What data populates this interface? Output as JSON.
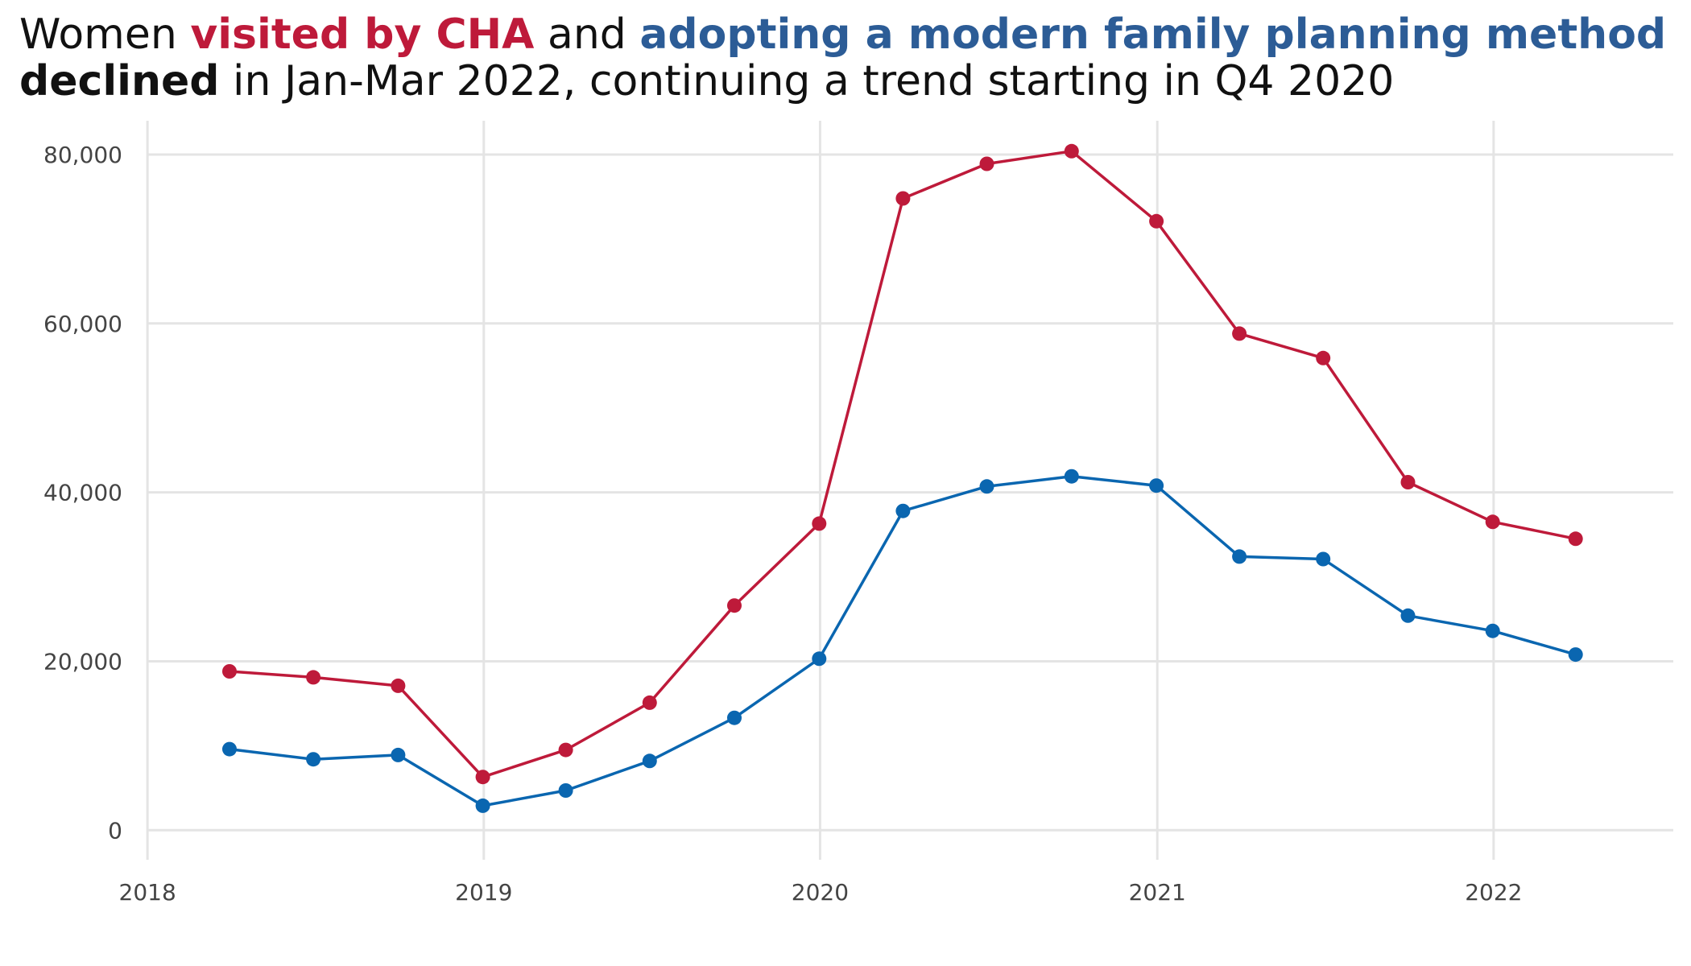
{
  "title": {
    "line1": [
      {
        "text": "Women ",
        "style": "normal"
      },
      {
        "text": "visited by CHA",
        "style": "red"
      },
      {
        "text": " and ",
        "style": "normal"
      },
      {
        "text": "adopting a modern family planning method",
        "style": "blue"
      }
    ],
    "line2": [
      {
        "text": "declined",
        "style": "bold"
      },
      {
        "text": " in Jan-Mar 2022, continuing a trend starting in Q4 2020",
        "style": "normal"
      }
    ]
  },
  "colors": {
    "visited": "#BE1A3A",
    "adopting": "#0A66B0",
    "grid": "#E4E4E4",
    "tick_text": "#444444",
    "title_text": "#111111"
  },
  "chart_data": {
    "type": "line",
    "title": "Women visited by CHA and adopting a modern family planning method declined in Jan-Mar 2022, continuing a trend starting in Q4 2020",
    "xlabel": "",
    "ylabel": "",
    "x": [
      "2018-03-31",
      "2018-06-30",
      "2018-09-30",
      "2018-12-31",
      "2019-03-31",
      "2019-06-30",
      "2019-09-30",
      "2019-12-31",
      "2020-03-31",
      "2020-06-30",
      "2020-09-30",
      "2020-12-31",
      "2021-03-31",
      "2021-06-30",
      "2021-09-30",
      "2021-12-31",
      "2022-03-31"
    ],
    "series": [
      {
        "key": "visited",
        "values": [
          18800,
          18100,
          17100,
          6300,
          9500,
          15100,
          26600,
          36300,
          74800,
          78900,
          80400,
          72100,
          58800,
          55900,
          41200,
          36500,
          34500
        ]
      },
      {
        "key": "adopting",
        "values": [
          9600,
          8400,
          8900,
          2900,
          4700,
          8200,
          13300,
          20300,
          37800,
          40700,
          41900,
          40800,
          32400,
          32100,
          25400,
          23600,
          20800
        ]
      }
    ],
    "xlim": [
      "2017-12-31",
      "2022-07-15"
    ],
    "ylim": [
      -3500,
      84000
    ],
    "xticks": [
      "2018",
      "2019",
      "2020",
      "2021",
      "2022"
    ],
    "xtick_dates": [
      "2018-01-01",
      "2019-01-01",
      "2020-01-01",
      "2021-01-01",
      "2022-01-01"
    ],
    "yticks": [
      0,
      20000,
      40000,
      60000,
      80000
    ],
    "ytick_labels": [
      "0",
      "20,000",
      "40,000",
      "60,000",
      "80,000"
    ],
    "grid": true,
    "legend": "none"
  }
}
